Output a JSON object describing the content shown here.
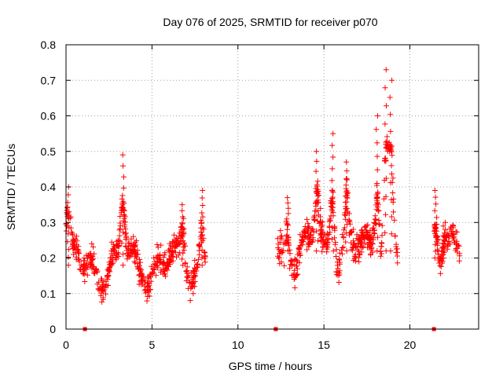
{
  "chart_data": {
    "type": "scatter",
    "title": "Day 076 of 2025, SRMTID for receiver p070",
    "xlabel": "GPS time / hours",
    "ylabel": "SRMTID / TECUs",
    "xlim": [
      0,
      24
    ],
    "ylim": [
      0,
      0.8
    ],
    "grid": true,
    "marker": "+",
    "marker_color": "#ff0000",
    "xticks": [
      0,
      5,
      10,
      15,
      20
    ],
    "xtick_labels": [
      "0",
      "5",
      "10",
      "15",
      "20"
    ],
    "yticks": [
      0,
      0.1,
      0.2,
      0.3,
      0.4,
      0.5,
      0.6,
      0.7,
      0.8
    ],
    "ytick_labels": [
      "0",
      "0.1",
      "0.2",
      "0.3",
      "0.4",
      "0.5",
      "0.6",
      "0.7",
      "0.8"
    ],
    "zero_markers_x": [
      1.1,
      12.2,
      21.4
    ],
    "series": [
      {
        "name": "SRMTID",
        "segments": [
          {
            "x_start": 0.0,
            "x_end": 8.1,
            "center": 0.18,
            "spread": 0.06,
            "peaks": [
              {
                "x": 0.1,
                "y": 0.4
              },
              {
                "x": 3.3,
                "y": 0.49
              },
              {
                "x": 6.8,
                "y": 0.35
              },
              {
                "x": 7.9,
                "y": 0.39
              }
            ]
          },
          {
            "x_start": 12.3,
            "x_end": 19.3,
            "center": 0.22,
            "spread": 0.07,
            "peaks": [
              {
                "x": 12.9,
                "y": 0.37
              },
              {
                "x": 14.6,
                "y": 0.5
              },
              {
                "x": 15.5,
                "y": 0.55
              },
              {
                "x": 16.3,
                "y": 0.47
              },
              {
                "x": 18.1,
                "y": 0.6
              },
              {
                "x": 18.6,
                "y": 0.73
              },
              {
                "x": 18.9,
                "y": 0.7
              }
            ]
          },
          {
            "x_start": 21.4,
            "x_end": 22.9,
            "center": 0.2,
            "spread": 0.05,
            "peaks": [
              {
                "x": 21.5,
                "y": 0.39
              },
              {
                "x": 22.0,
                "y": 0.3
              }
            ]
          }
        ]
      }
    ]
  }
}
